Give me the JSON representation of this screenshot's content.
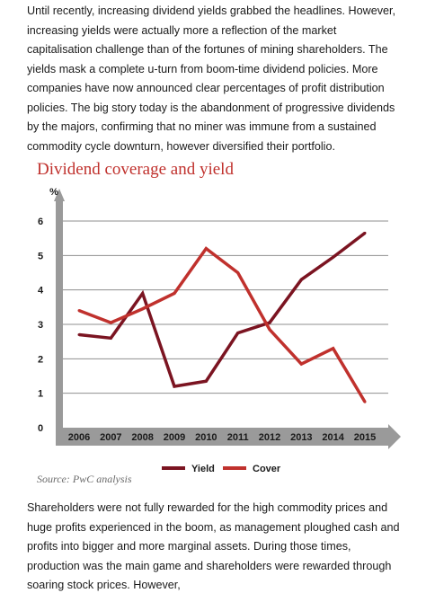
{
  "intro_paragraph": "Until recently, increasing dividend yields grabbed the headlines. However, increasing yields were actually more a reflection of the market capitalisation challenge than of the fortunes of mining shareholders. The yields mask a complete u-turn from boom-time dividend policies. More companies have now announced clear percentages of profit distribution policies. The big story today is the abandonment of progressive dividends by the majors, confirming that no miner was immune from a sustained commodity cycle downturn, however diversified their portfolio.",
  "source_note": "Source: PwC analysis",
  "closing_paragraph": "Shareholders were not fully rewarded for the high commodity prices and huge profits experienced in the boom, as management ploughed cash and profits into bigger and more marginal assets. During those times, production was the main game and shareholders were rewarded through soaring stock prices. However,",
  "chart_data": {
    "type": "line",
    "title": "Dividend coverage and yield",
    "ylabel": "%",
    "xlabel": "",
    "ylim": [
      0,
      6
    ],
    "yticks": [
      0,
      1,
      2,
      3,
      4,
      5,
      6
    ],
    "categories": [
      "2006",
      "2007",
      "2008",
      "2009",
      "2010",
      "2011",
      "2012",
      "2013",
      "2014",
      "2015"
    ],
    "series": [
      {
        "name": "Yield",
        "color": "#7b1421",
        "values": [
          2.7,
          2.6,
          3.9,
          1.2,
          1.35,
          2.75,
          3.05,
          4.3,
          4.95,
          5.65
        ]
      },
      {
        "name": "Cover",
        "color": "#c0312d",
        "values": [
          3.4,
          3.05,
          3.45,
          3.9,
          5.2,
          4.5,
          2.85,
          1.85,
          2.3,
          0.75
        ]
      }
    ],
    "grid": true,
    "legend": "bottom-right"
  }
}
